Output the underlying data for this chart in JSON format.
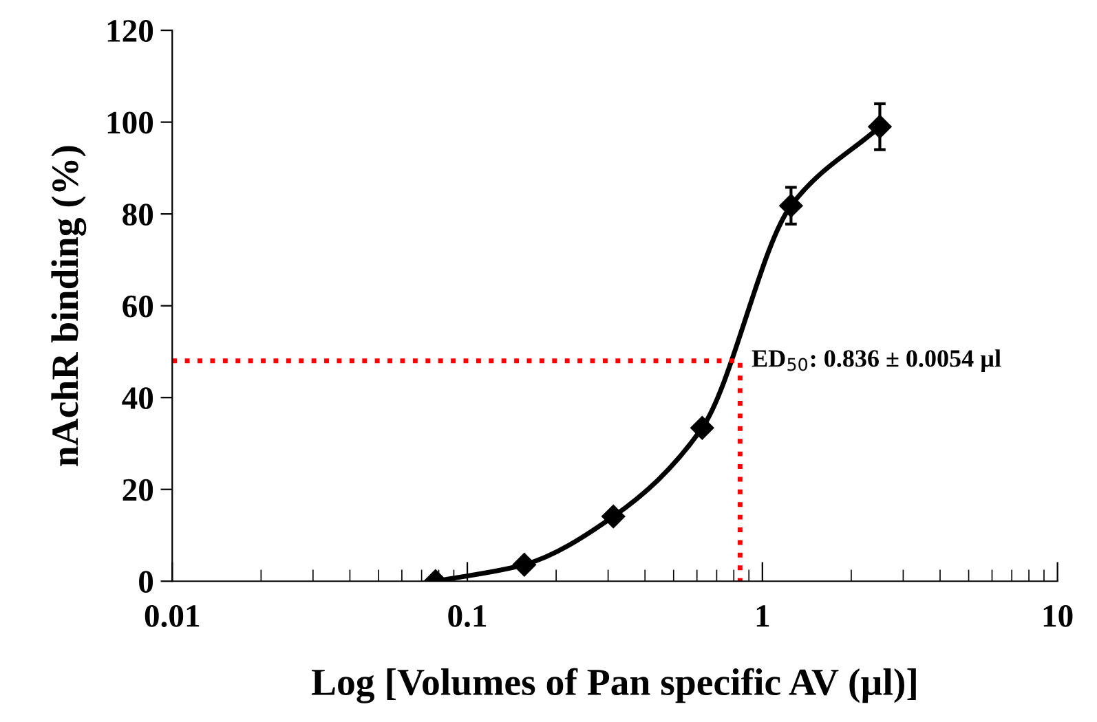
{
  "chart_data": {
    "type": "line",
    "xlabel": "Log [Volumes of Pan specific AV (µl)]",
    "ylabel": "nAchR binding (%)",
    "log": "x",
    "xlim": [
      0.01,
      10
    ],
    "xticks": [
      0.01,
      0.1,
      1,
      10
    ],
    "ylim": [
      0,
      120
    ],
    "yticks": [
      0,
      20,
      40,
      60,
      80,
      100,
      120
    ],
    "grid": false,
    "legend": false,
    "series": [
      {
        "color": "#ff0000",
        "line_style": "dotted",
        "marker": "none",
        "x": [
          0.01,
          0.84,
          0.84
        ],
        "values": [
          48,
          48,
          0
        ]
      },
      {
        "color": "#000000",
        "line_style": "solid",
        "marker": "diamond",
        "x": [
          0.078,
          0.156,
          0.3125,
          0.625,
          1.25,
          2.5
        ],
        "values": [
          0,
          3.6,
          14.1,
          33.4,
          81.8,
          99
        ],
        "errors": [
          null,
          null,
          null,
          null,
          4,
          5
        ]
      }
    ],
    "annotations": [
      "ED$_{50}$: 0.836 ± 0.0054 µl"
    ]
  }
}
